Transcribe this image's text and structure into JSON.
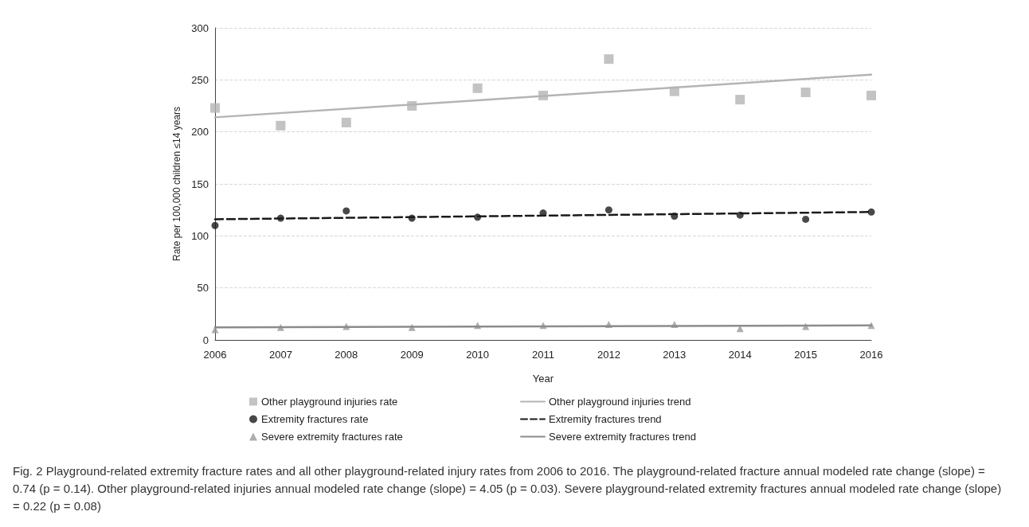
{
  "chart_data": {
    "type": "scatter",
    "xlabel": "Year",
    "ylabel": "Rate per 100,000 children ≤14 years",
    "xlim": [
      2006,
      2016
    ],
    "xticks": [
      2006,
      2007,
      2008,
      2009,
      2010,
      2011,
      2012,
      2013,
      2014,
      2015,
      2016
    ],
    "ylim": [
      0,
      300
    ],
    "yticks": [
      0,
      50,
      100,
      150,
      200,
      250,
      300
    ],
    "grid": "y",
    "legend": "bottom",
    "series": [
      {
        "name": "Other playground injuries rate",
        "marker": "square",
        "color": "#b4b4b4",
        "x": [
          2006,
          2007,
          2008,
          2009,
          2010,
          2011,
          2012,
          2013,
          2014,
          2015,
          2016
        ],
        "values": [
          223,
          206,
          209,
          225,
          242,
          235,
          270,
          239,
          231,
          238,
          235
        ]
      },
      {
        "name": "Other playground injuries trend",
        "type": "line",
        "marker": "none",
        "line_style": "solid",
        "color": "#b4b4b4",
        "x": [
          2006,
          2016
        ],
        "values": [
          214,
          255
        ]
      },
      {
        "name": "Extremity fractures rate",
        "marker": "circle",
        "color": "#1a1a1a",
        "x": [
          2006,
          2007,
          2008,
          2009,
          2010,
          2011,
          2012,
          2013,
          2014,
          2015,
          2016
        ],
        "values": [
          110,
          117,
          124,
          117,
          118,
          122,
          125,
          119,
          120,
          116,
          123
        ]
      },
      {
        "name": "Extremity fractures trend",
        "type": "line",
        "marker": "none",
        "line_style": "dashed",
        "color": "#1a1a1a",
        "x": [
          2006,
          2016
        ],
        "values": [
          116,
          123
        ]
      },
      {
        "name": "Severe extremity fractures rate",
        "marker": "triangle",
        "color": "#9a9a9a",
        "x": [
          2006,
          2007,
          2008,
          2009,
          2010,
          2011,
          2012,
          2013,
          2014,
          2015,
          2016
        ],
        "values": [
          10,
          12,
          13,
          12,
          14,
          14,
          15,
          15,
          11,
          13,
          14
        ]
      },
      {
        "name": "Severe extremity fractures trend",
        "type": "line",
        "marker": "none",
        "line_style": "solid",
        "color": "#8c8c8c",
        "x": [
          2006,
          2016
        ],
        "values": [
          12,
          14
        ]
      }
    ],
    "annotations": [
      "Fig. 2 Playground-related extremity fracture rates and all other playground-related injury rates from 2006 to 2016. The playground-related fracture annual modeled rate change (slope) = 0.74 (p = 0.14). Other playground-related injuries annual modeled rate change (slope) = 4.05 (p = 0.03). Severe playground-related extremity fractures annual modeled rate change (slope) = 0.22 (p = 0.08)"
    ]
  }
}
